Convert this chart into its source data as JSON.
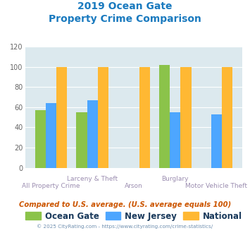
{
  "title_line1": "2019 Ocean Gate",
  "title_line2": "Property Crime Comparison",
  "ocean_gate": [
    57,
    55,
    0,
    102,
    0
  ],
  "new_jersey": [
    64,
    67,
    0,
    55,
    53
  ],
  "national": [
    100,
    100,
    100,
    100,
    100
  ],
  "colors": {
    "ocean_gate": "#8bc34a",
    "new_jersey": "#4da6ff",
    "national": "#ffb833"
  },
  "ylim": [
    0,
    120
  ],
  "yticks": [
    0,
    20,
    40,
    60,
    80,
    100,
    120
  ],
  "title_color": "#1a7abf",
  "xlabel_color": "#9b8db0",
  "background_color": "#dce9ee",
  "footer_text": "Compared to U.S. average. (U.S. average equals 100)",
  "copyright_text": "© 2025 CityRating.com - https://www.cityrating.com/crime-statistics/",
  "legend_labels": [
    "Ocean Gate",
    "New Jersey",
    "National"
  ],
  "legend_text_color": "#1a3a5c",
  "footer_color": "#cc5500",
  "copyright_color": "#7090b0"
}
